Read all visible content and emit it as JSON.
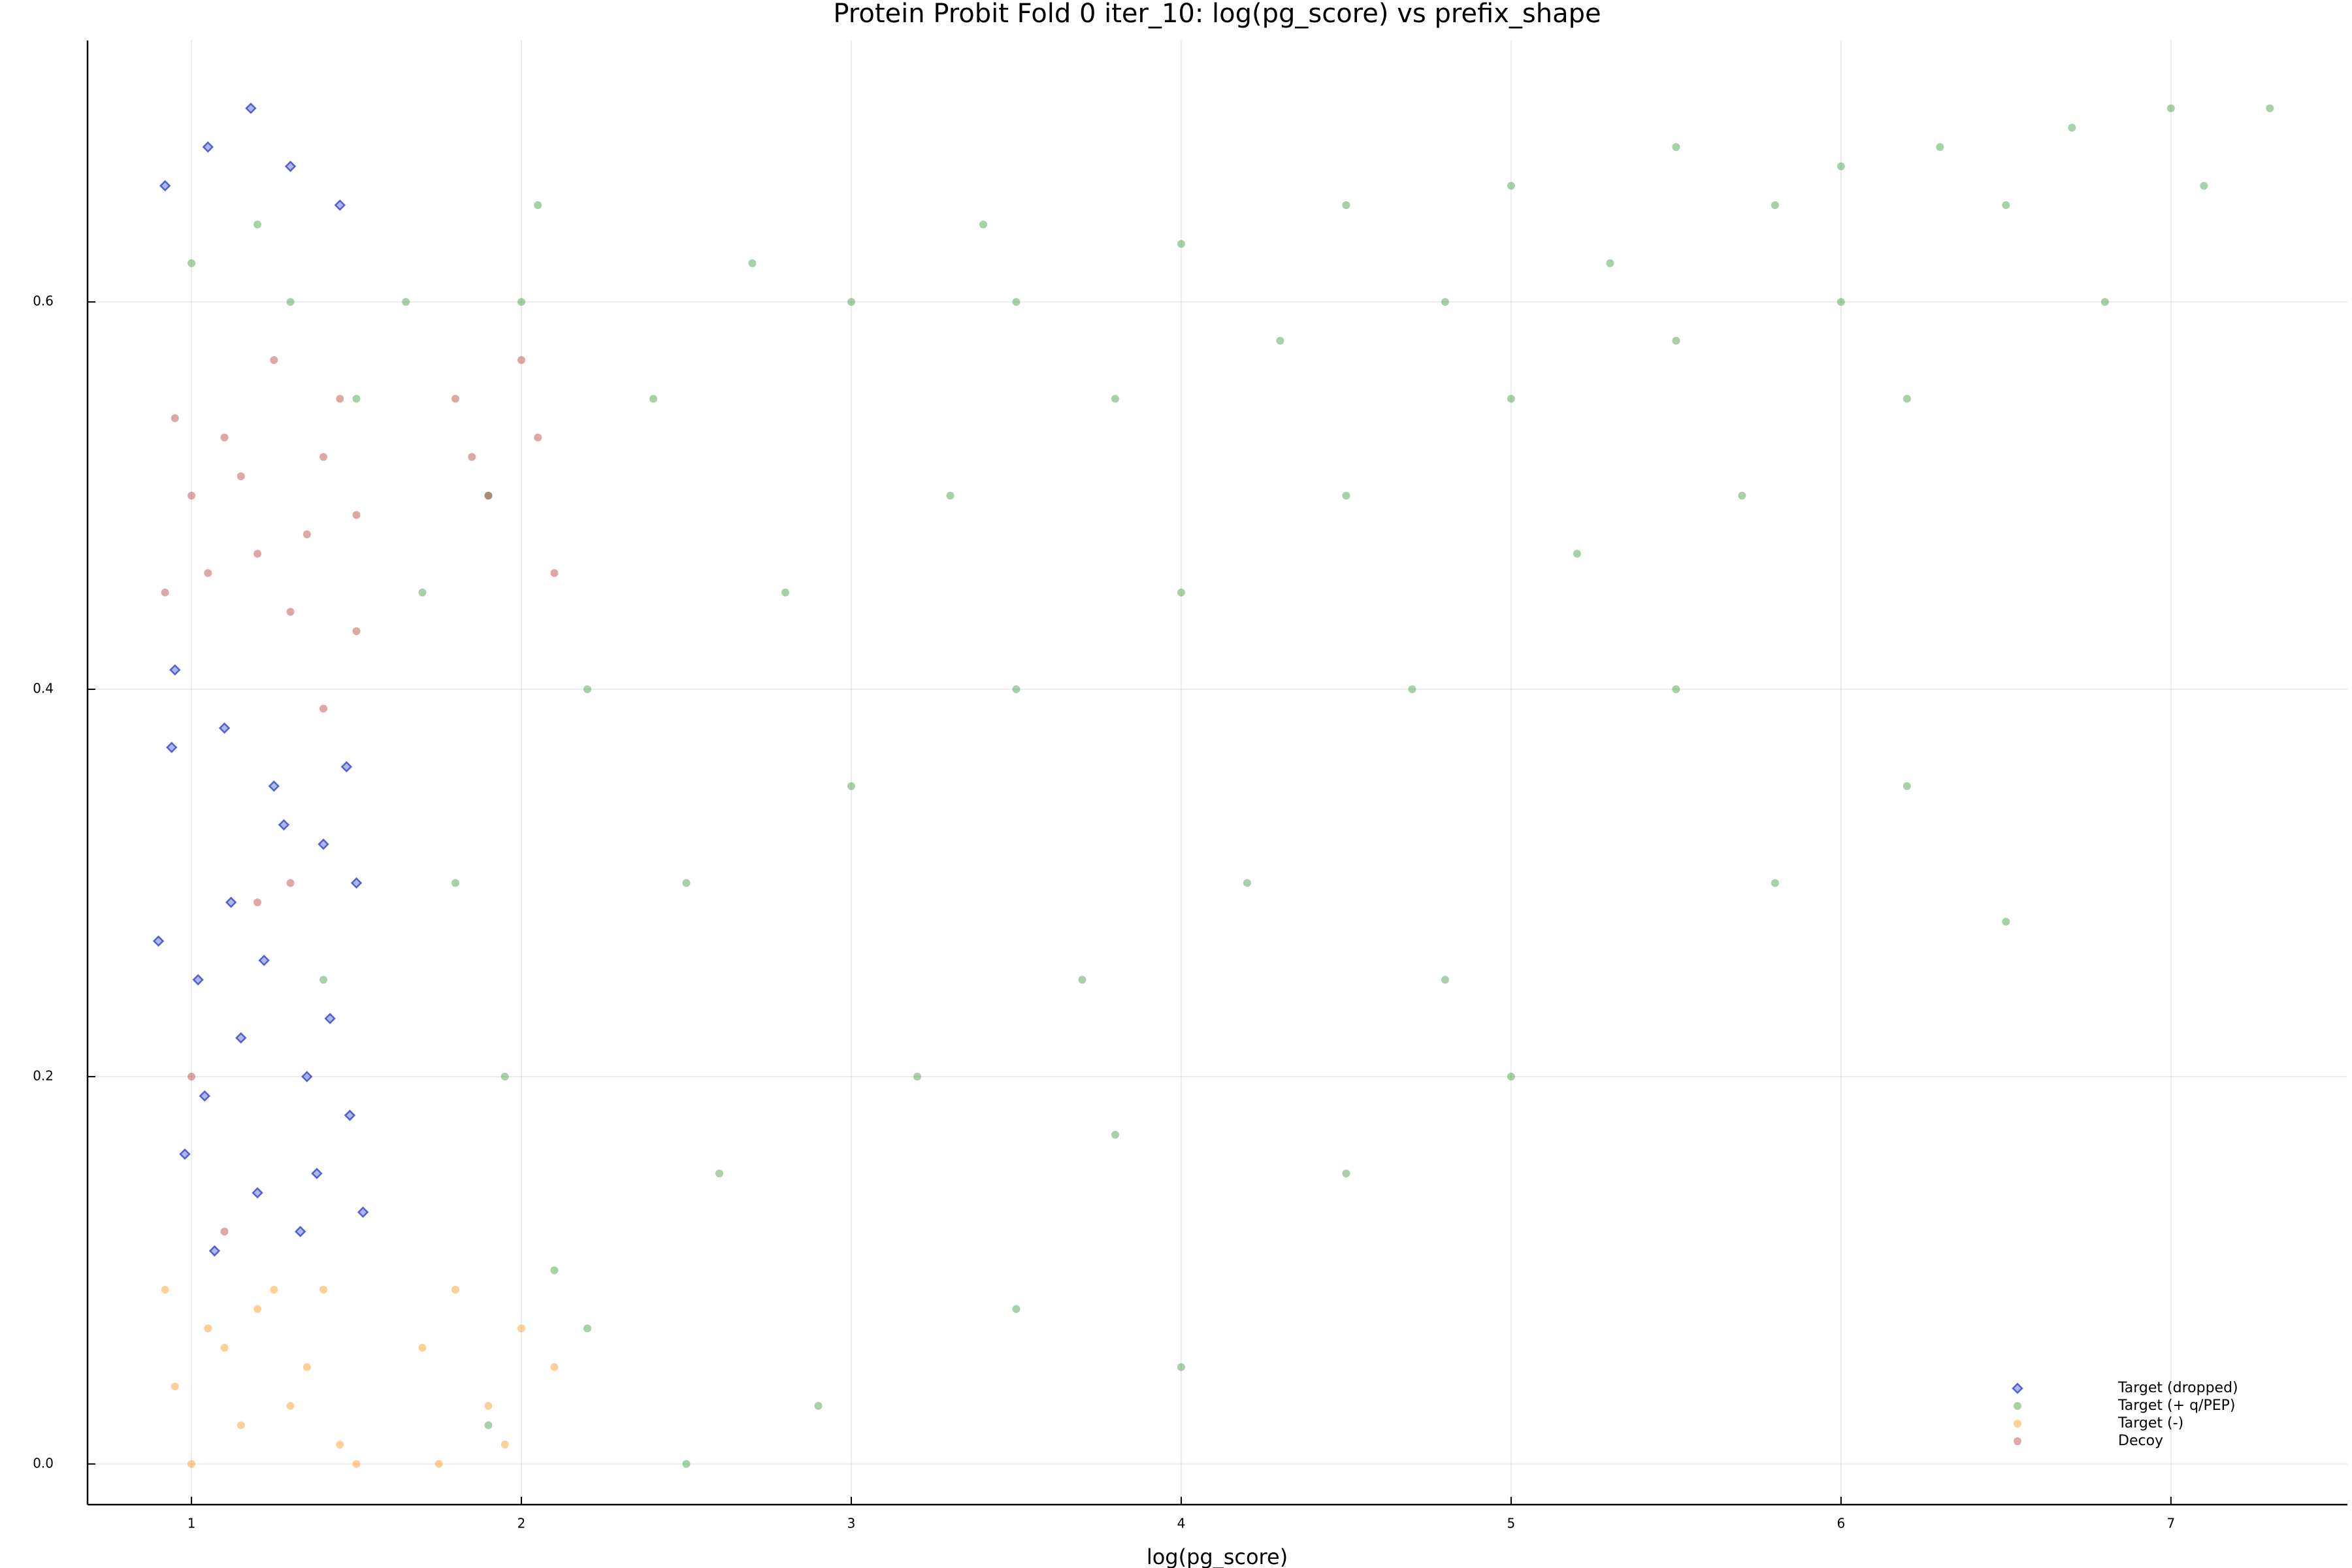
{
  "chart_data": {
    "type": "scatter",
    "title": "Protein Probit Fold 0 iter_10: log(pg_score) vs prefix_shape",
    "x_label": "log(pg_score)",
    "xlim": [
      0.685,
      7.535
    ],
    "ylim": [
      -0.021,
      0.735
    ],
    "xticks": [
      1,
      2,
      3,
      4,
      5,
      6,
      7
    ],
    "yticks": [
      {
        "value": 0,
        "label": "0.0"
      },
      0.2,
      0.4,
      0.6
    ],
    "grid": true,
    "legend": "bottom right",
    "series": [
      {
        "name": "Target (dropped)",
        "color": "#1a2fc4",
        "marker": "diamond",
        "x": [
          0.92,
          1.05,
          1.18,
          1.3,
          1.45,
          0.95,
          1.1,
          1.25,
          1.4,
          1.5,
          0.9,
          1.02,
          1.15,
          1.35,
          1.48,
          0.98,
          1.2,
          1.33,
          1.07,
          1.42,
          1.12,
          1.28,
          0.94,
          1.38,
          1.52,
          1.04,
          1.22,
          1.47
        ],
        "y": [
          0.66,
          0.68,
          0.7,
          0.67,
          0.65,
          0.41,
          0.38,
          0.35,
          0.32,
          0.3,
          0.27,
          0.25,
          0.22,
          0.2,
          0.18,
          0.16,
          0.14,
          0.12,
          0.11,
          0.23,
          0.29,
          0.33,
          0.37,
          0.15,
          0.13,
          0.19,
          0.26,
          0.36
        ]
      },
      {
        "name": "Target (+ q/PEP)",
        "color": "#228b22",
        "marker": "circle",
        "x": [
          1.0,
          1.3,
          1.5,
          1.2,
          1.4,
          1.8,
          1.9,
          2.0,
          2.1,
          1.95,
          2.2,
          2.4,
          2.5,
          2.6,
          2.8,
          3.0,
          3.0,
          3.2,
          3.3,
          3.5,
          3.5,
          3.7,
          3.8,
          4.0,
          4.0,
          4.2,
          4.3,
          4.5,
          4.5,
          4.7,
          4.8,
          5.0,
          5.0,
          5.2,
          5.3,
          5.5,
          5.5,
          5.7,
          5.8,
          6.0,
          6.0,
          6.2,
          6.3,
          6.5,
          6.7,
          7.0,
          7.3,
          6.2,
          5.8,
          5.0,
          4.5,
          4.0,
          3.5,
          2.5,
          1.9,
          3.8,
          4.8,
          5.5,
          6.5,
          2.2,
          2.9,
          1.7,
          1.65,
          2.05,
          2.7,
          3.4,
          6.8,
          7.1
        ],
        "y": [
          0.62,
          0.6,
          0.55,
          0.64,
          0.25,
          0.3,
          0.5,
          0.6,
          0.1,
          0.2,
          0.4,
          0.55,
          0.3,
          0.15,
          0.45,
          0.6,
          0.35,
          0.2,
          0.5,
          0.6,
          0.4,
          0.25,
          0.55,
          0.63,
          0.45,
          0.3,
          0.58,
          0.65,
          0.5,
          0.4,
          0.6,
          0.66,
          0.55,
          0.47,
          0.62,
          0.68,
          0.58,
          0.5,
          0.65,
          0.67,
          0.6,
          0.55,
          0.68,
          0.65,
          0.69,
          0.7,
          0.7,
          0.35,
          0.3,
          0.2,
          0.15,
          0.05,
          0.08,
          0.0,
          0.02,
          0.17,
          0.25,
          0.4,
          0.28,
          0.07,
          0.03,
          0.45,
          0.6,
          0.65,
          0.62,
          0.64,
          0.6,
          0.66
        ]
      },
      {
        "name": "Target (-)",
        "color": "#ff8c00",
        "marker": "circle",
        "x": [
          0.92,
          1.0,
          1.1,
          1.2,
          1.3,
          1.4,
          1.5,
          0.95,
          1.05,
          1.15,
          1.25,
          1.35,
          1.45,
          1.7,
          1.8,
          1.9,
          2.0,
          2.1,
          1.75,
          1.95
        ],
        "y": [
          0.09,
          0.0,
          0.06,
          0.08,
          0.03,
          0.09,
          0.0,
          0.04,
          0.07,
          0.02,
          0.09,
          0.05,
          0.01,
          0.06,
          0.09,
          0.03,
          0.07,
          0.05,
          0.0,
          0.01
        ]
      },
      {
        "name": "Decoy",
        "color": "#b22222",
        "marker": "circle",
        "x": [
          0.92,
          1.0,
          1.1,
          1.2,
          1.3,
          1.4,
          1.5,
          0.95,
          1.05,
          1.15,
          1.25,
          1.35,
          1.45,
          1.5,
          1.0,
          1.2,
          1.4,
          1.1,
          1.3,
          1.8,
          1.9,
          2.0,
          2.1,
          1.85,
          2.05
        ],
        "y": [
          0.45,
          0.5,
          0.53,
          0.47,
          0.44,
          0.52,
          0.49,
          0.54,
          0.46,
          0.51,
          0.57,
          0.48,
          0.55,
          0.43,
          0.2,
          0.29,
          0.39,
          0.12,
          0.3,
          0.55,
          0.5,
          0.57,
          0.46,
          0.52,
          0.53
        ]
      }
    ]
  }
}
